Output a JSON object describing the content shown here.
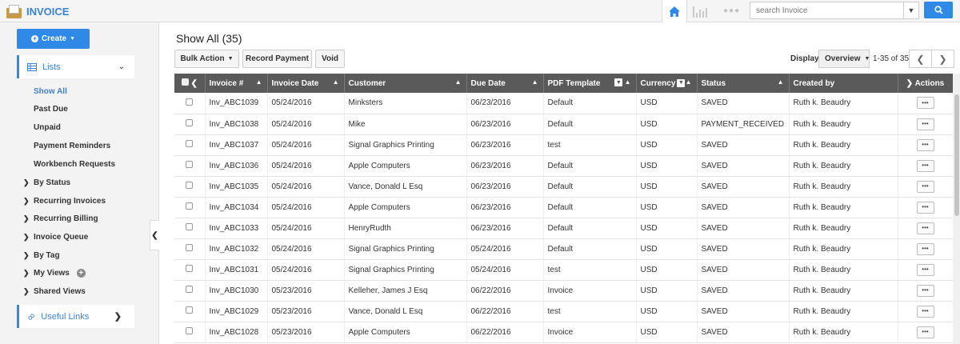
{
  "app": {
    "title": "INVOICE",
    "brand_color": "#3b82d6",
    "accent": "#2e8ae6"
  },
  "topbar": {
    "search_placeholder": "search Invoice"
  },
  "sidebar": {
    "create_label": "Create",
    "lists_label": "Lists",
    "items": [
      "Show All",
      "Past Due",
      "Unpaid",
      "Payment Reminders",
      "Workbench Requests"
    ],
    "groups": [
      "By Status",
      "Recurring Invoices",
      "Recurring Billing",
      "Invoice Queue",
      "By Tag",
      "My Views",
      "Shared Views"
    ],
    "useful_links_label": "Useful Links"
  },
  "main": {
    "title": "Show All (35)",
    "toolbar": {
      "bulk_action": "Bulk Action",
      "record_payment": "Record Payment",
      "void": "Void"
    },
    "display_label": "Display",
    "display_value": "Overview",
    "pager": "1-35 of 35"
  },
  "table": {
    "headers": [
      "Invoice #",
      "Invoice Date",
      "Customer",
      "Due Date",
      "PDF Template",
      "Currency",
      "Status",
      "Created by",
      "Actions"
    ],
    "rows": [
      [
        "Inv_ABC1039",
        "05/24/2016",
        "Minksters",
        "06/23/2016",
        "Default",
        "USD",
        "SAVED",
        "Ruth k. Beaudry"
      ],
      [
        "Inv_ABC1038",
        "05/24/2016",
        "Mike",
        "06/23/2016",
        "Default",
        "USD",
        "PAYMENT_RECEIVED",
        "Ruth k. Beaudry"
      ],
      [
        "Inv_ABC1037",
        "05/24/2016",
        "Signal Graphics Printing",
        "06/23/2016",
        "test",
        "USD",
        "SAVED",
        "Ruth k. Beaudry"
      ],
      [
        "Inv_ABC1036",
        "05/24/2016",
        "Apple Computers",
        "06/23/2016",
        "Default",
        "USD",
        "SAVED",
        "Ruth k. Beaudry"
      ],
      [
        "Inv_ABC1035",
        "05/24/2016",
        "Vance, Donald L Esq",
        "06/23/2016",
        "Default",
        "USD",
        "SAVED",
        "Ruth k. Beaudry"
      ],
      [
        "Inv_ABC1034",
        "05/24/2016",
        "Apple Computers",
        "06/23/2016",
        "Default",
        "USD",
        "SAVED",
        "Ruth k. Beaudry"
      ],
      [
        "Inv_ABC1033",
        "05/24/2016",
        "HenryRudth",
        "06/23/2016",
        "Default",
        "USD",
        "SAVED",
        "Ruth k. Beaudry"
      ],
      [
        "Inv_ABC1032",
        "05/24/2016",
        "Signal Graphics Printing",
        "05/24/2016",
        "Default",
        "USD",
        "SAVED",
        "Ruth k. Beaudry"
      ],
      [
        "Inv_ABC1031",
        "05/24/2016",
        "Signal Graphics Printing",
        "05/24/2016",
        "test",
        "USD",
        "SAVED",
        "Ruth k. Beaudry"
      ],
      [
        "Inv_ABC1030",
        "05/23/2016",
        "Kelleher, James J Esq",
        "06/22/2016",
        "Invoice",
        "USD",
        "SAVED",
        "Ruth k. Beaudry"
      ],
      [
        "Inv_ABC1029",
        "05/23/2016",
        "Vance, Donald L Esq",
        "06/22/2016",
        "test",
        "USD",
        "SAVED",
        "Ruth k. Beaudry"
      ],
      [
        "Inv_ABC1028",
        "05/23/2016",
        "Apple Computers",
        "06/22/2016",
        "Invoice",
        "USD",
        "SAVED",
        "Ruth k. Beaudry"
      ]
    ]
  }
}
